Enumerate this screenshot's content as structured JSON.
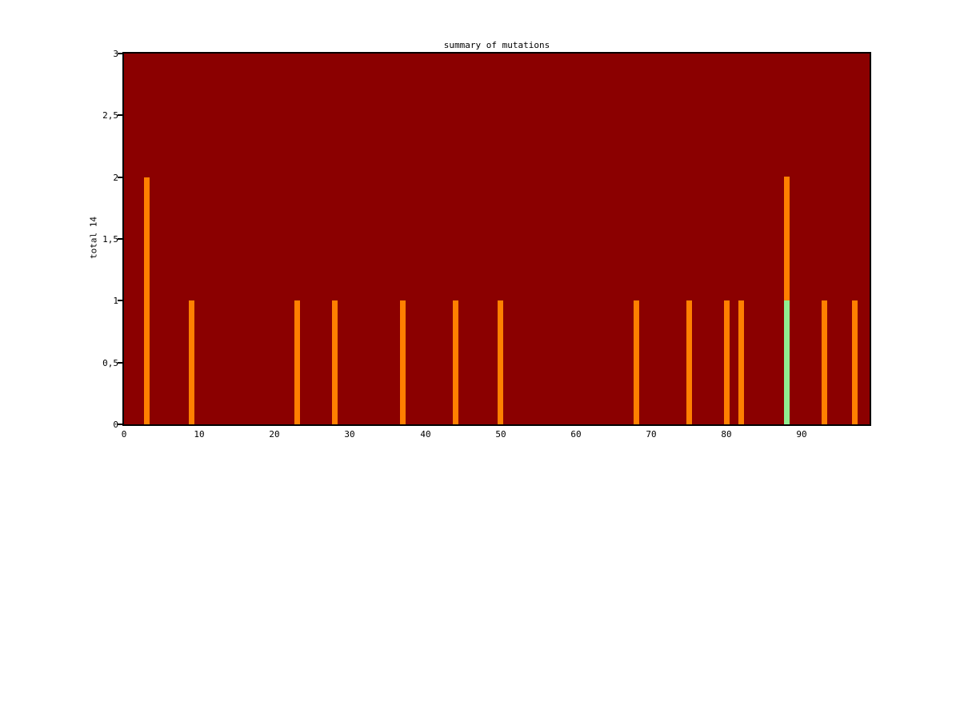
{
  "page": {
    "background_color": "#ffffff"
  },
  "chart_data": {
    "type": "bar",
    "title": "summary of mutations",
    "xlabel": "",
    "ylabel": "total 14",
    "xlim": [
      0,
      99
    ],
    "ylim": [
      0,
      3
    ],
    "grid": false,
    "legend": "none",
    "plot_background_color": "#8B0000",
    "bar_color": "#FF8000",
    "highlight_bar_color": "#90EE90",
    "axis_color": "#000000",
    "x_ticks": [
      {
        "value": 0,
        "label": "0"
      },
      {
        "value": 10,
        "label": "10"
      },
      {
        "value": 20,
        "label": "20"
      },
      {
        "value": 30,
        "label": "30"
      },
      {
        "value": 40,
        "label": "40"
      },
      {
        "value": 50,
        "label": "50"
      },
      {
        "value": 60,
        "label": "60"
      },
      {
        "value": 70,
        "label": "70"
      },
      {
        "value": 80,
        "label": "80"
      },
      {
        "value": 90,
        "label": "90"
      }
    ],
    "y_ticks": [
      {
        "value": 0,
        "label": "0"
      },
      {
        "value": 0.5,
        "label": "0,5"
      },
      {
        "value": 1,
        "label": "1"
      },
      {
        "value": 1.5,
        "label": "1,5"
      },
      {
        "value": 2,
        "label": "2"
      },
      {
        "value": 2.5,
        "label": "2,5"
      },
      {
        "value": 3,
        "label": "3"
      }
    ],
    "bars": [
      {
        "x": 3,
        "segments": [
          {
            "from": 0,
            "to": 2,
            "color": "orange"
          }
        ]
      },
      {
        "x": 9,
        "segments": [
          {
            "from": 0,
            "to": 1,
            "color": "orange"
          }
        ]
      },
      {
        "x": 23,
        "segments": [
          {
            "from": 0,
            "to": 1,
            "color": "orange"
          }
        ]
      },
      {
        "x": 28,
        "segments": [
          {
            "from": 0,
            "to": 1,
            "color": "orange"
          }
        ]
      },
      {
        "x": 37,
        "segments": [
          {
            "from": 0,
            "to": 1,
            "color": "orange"
          }
        ]
      },
      {
        "x": 44,
        "segments": [
          {
            "from": 0,
            "to": 1,
            "color": "orange"
          }
        ]
      },
      {
        "x": 50,
        "segments": [
          {
            "from": 0,
            "to": 1,
            "color": "orange"
          }
        ]
      },
      {
        "x": 68,
        "segments": [
          {
            "from": 0,
            "to": 1,
            "color": "orange"
          }
        ]
      },
      {
        "x": 75,
        "segments": [
          {
            "from": 0,
            "to": 1,
            "color": "orange"
          }
        ]
      },
      {
        "x": 80,
        "segments": [
          {
            "from": 0,
            "to": 1,
            "color": "orange"
          }
        ]
      },
      {
        "x": 82,
        "segments": [
          {
            "from": 0,
            "to": 1,
            "color": "orange"
          }
        ]
      },
      {
        "x": 88,
        "segments": [
          {
            "from": 0,
            "to": 1,
            "color": "green"
          },
          {
            "from": 1,
            "to": 2,
            "color": "orange"
          }
        ]
      },
      {
        "x": 93,
        "segments": [
          {
            "from": 0,
            "to": 1,
            "color": "orange"
          }
        ]
      },
      {
        "x": 97,
        "segments": [
          {
            "from": 0,
            "to": 1,
            "color": "orange"
          }
        ]
      }
    ]
  }
}
